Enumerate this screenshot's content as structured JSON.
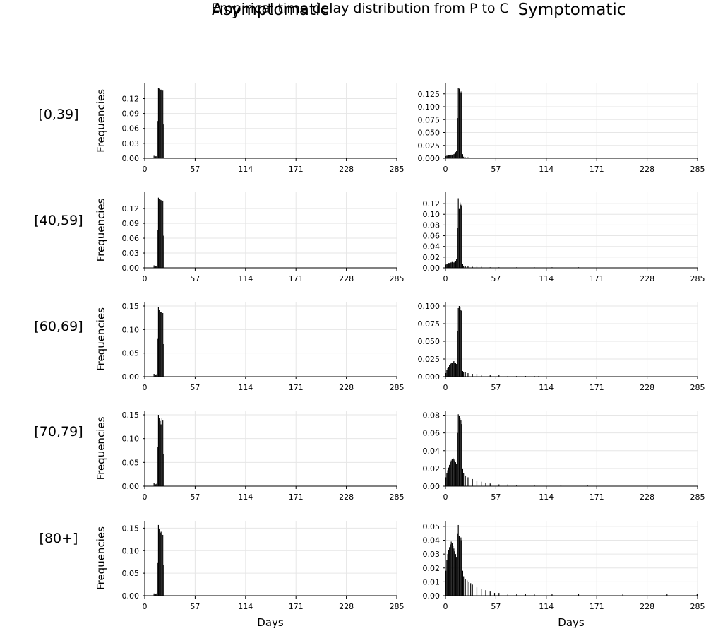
{
  "figure": {
    "title": "Empirical time delay distribution from P to C",
    "column_titles": [
      "Asymptomatic",
      "Symptomatic"
    ],
    "row_labels": [
      "[0,39]",
      "[40,59]",
      "[60,69]",
      "[70,79]",
      "[80+]"
    ],
    "ylabel": "Frequencies",
    "xlabel": "Days",
    "bar_color": "#000000"
  },
  "chart_data": [
    {
      "type": "bar",
      "title": "Asymptomatic [0,39]",
      "xlabel": "",
      "ylabel": "Frequencies",
      "xlim": [
        0,
        285
      ],
      "ylim": [
        0,
        0.142
      ],
      "x_ticks": [
        0,
        57,
        114,
        171,
        228,
        285
      ],
      "y_ticks": [
        "0.00",
        "0.03",
        "0.06",
        "0.09",
        "0.12"
      ],
      "grid": true,
      "x": [
        10,
        11,
        12,
        13,
        14,
        15,
        16,
        17,
        18,
        19,
        20,
        21
      ],
      "values": [
        0.005,
        0.004,
        0.004,
        0.004,
        0.075,
        0.141,
        0.14,
        0.138,
        0.138,
        0.136,
        0.136,
        0.068
      ]
    },
    {
      "type": "bar",
      "title": "Symptomatic [0,39]",
      "xlabel": "",
      "ylabel": "",
      "xlim": [
        0,
        285
      ],
      "ylim": [
        0,
        0.137
      ],
      "x_ticks": [
        0,
        57,
        114,
        171,
        228,
        285
      ],
      "y_ticks": [
        "0.000",
        "0.025",
        "0.050",
        "0.075",
        "0.100",
        "0.125"
      ],
      "grid": true,
      "x": [
        0,
        1,
        2,
        3,
        4,
        5,
        6,
        7,
        8,
        9,
        10,
        11,
        12,
        13,
        14,
        15,
        16,
        17,
        18,
        19,
        20,
        22,
        25,
        30,
        35,
        40,
        45
      ],
      "values": [
        0.004,
        0.005,
        0.005,
        0.006,
        0.006,
        0.006,
        0.007,
        0.007,
        0.007,
        0.008,
        0.009,
        0.012,
        0.015,
        0.078,
        0.136,
        0.135,
        0.13,
        0.128,
        0.13,
        0.008,
        0.003,
        0.002,
        0.002,
        0.001,
        0.001,
        0.001,
        0.001
      ]
    },
    {
      "type": "bar",
      "title": "Asymptomatic [40,59]",
      "xlabel": "",
      "ylabel": "Frequencies",
      "xlim": [
        0,
        285
      ],
      "ylim": [
        0,
        0.143
      ],
      "x_ticks": [
        0,
        57,
        114,
        171,
        228,
        285
      ],
      "y_ticks": [
        "0.00",
        "0.03",
        "0.06",
        "0.09",
        "0.12"
      ],
      "grid": true,
      "x": [
        10,
        11,
        12,
        13,
        14,
        15,
        16,
        17,
        18,
        19,
        20,
        21
      ],
      "values": [
        0.005,
        0.004,
        0.004,
        0.004,
        0.076,
        0.142,
        0.139,
        0.138,
        0.137,
        0.136,
        0.136,
        0.065
      ]
    },
    {
      "type": "bar",
      "title": "Symptomatic [40,59]",
      "xlabel": "",
      "ylabel": "",
      "xlim": [
        0,
        285
      ],
      "ylim": [
        0,
        0.132
      ],
      "x_ticks": [
        0,
        57,
        114,
        171,
        228,
        285
      ],
      "y_ticks": [
        "0.00",
        "0.02",
        "0.04",
        "0.06",
        "0.08",
        "0.10",
        "0.12"
      ],
      "grid": true,
      "x": [
        0,
        1,
        2,
        3,
        4,
        5,
        6,
        7,
        8,
        9,
        10,
        11,
        12,
        13,
        14,
        15,
        16,
        17,
        18,
        19,
        20,
        22,
        25,
        30,
        35,
        40,
        50,
        60,
        80,
        100,
        120,
        150
      ],
      "values": [
        0.006,
        0.007,
        0.008,
        0.009,
        0.009,
        0.01,
        0.01,
        0.011,
        0.01,
        0.01,
        0.011,
        0.013,
        0.016,
        0.075,
        0.13,
        0.11,
        0.122,
        0.118,
        0.115,
        0.007,
        0.004,
        0.003,
        0.003,
        0.002,
        0.002,
        0.002,
        0.001,
        0.001,
        0.001,
        0.001,
        0.001,
        0.001
      ]
    },
    {
      "type": "bar",
      "title": "Asymptomatic [60,69]",
      "xlabel": "",
      "ylabel": "Frequencies",
      "xlim": [
        0,
        285
      ],
      "ylim": [
        0,
        0.153
      ],
      "x_ticks": [
        0,
        57,
        114,
        171,
        228,
        285
      ],
      "y_ticks": [
        "0.00",
        "0.05",
        "0.10",
        "0.15"
      ],
      "grid": true,
      "x": [
        10,
        11,
        12,
        13,
        14,
        15,
        16,
        17,
        18,
        19,
        20,
        21
      ],
      "values": [
        0.006,
        0.005,
        0.004,
        0.005,
        0.08,
        0.147,
        0.141,
        0.138,
        0.137,
        0.136,
        0.135,
        0.069
      ]
    },
    {
      "type": "bar",
      "title": "Symptomatic [60,69]",
      "xlabel": "",
      "ylabel": "",
      "xlim": [
        0,
        285
      ],
      "ylim": [
        0,
        0.102
      ],
      "x_ticks": [
        0,
        57,
        114,
        171,
        228,
        285
      ],
      "y_ticks": [
        "0.000",
        "0.025",
        "0.050",
        "0.075",
        "0.100"
      ],
      "grid": true,
      "x": [
        0,
        1,
        2,
        3,
        4,
        5,
        6,
        7,
        8,
        9,
        10,
        11,
        12,
        13,
        14,
        15,
        16,
        17,
        18,
        19,
        20,
        22,
        25,
        30,
        35,
        40,
        50,
        60,
        70,
        80,
        90,
        100,
        105
      ],
      "values": [
        0.005,
        0.009,
        0.012,
        0.014,
        0.016,
        0.018,
        0.019,
        0.02,
        0.021,
        0.022,
        0.02,
        0.019,
        0.018,
        0.065,
        0.097,
        0.1,
        0.098,
        0.095,
        0.093,
        0.008,
        0.006,
        0.006,
        0.005,
        0.004,
        0.004,
        0.003,
        0.002,
        0.002,
        0.001,
        0.001,
        0.001,
        0.001,
        0.001
      ]
    },
    {
      "type": "bar",
      "title": "Asymptomatic [70,79]",
      "xlabel": "",
      "ylabel": "Frequencies",
      "xlim": [
        0,
        285
      ],
      "ylim": [
        0,
        0.153
      ],
      "x_ticks": [
        0,
        57,
        114,
        171,
        228,
        285
      ],
      "y_ticks": [
        "0.00",
        "0.05",
        "0.10",
        "0.15"
      ],
      "grid": true,
      "x": [
        10,
        11,
        12,
        13,
        14,
        15,
        16,
        17,
        18,
        19,
        20,
        21
      ],
      "values": [
        0.006,
        0.005,
        0.004,
        0.005,
        0.082,
        0.15,
        0.143,
        0.137,
        0.13,
        0.143,
        0.138,
        0.067
      ]
    },
    {
      "type": "bar",
      "title": "Symptomatic [70,79]",
      "xlabel": "",
      "ylabel": "",
      "xlim": [
        0,
        285
      ],
      "ylim": [
        0,
        0.082
      ],
      "x_ticks": [
        0,
        57,
        114,
        171,
        228,
        285
      ],
      "y_ticks": [
        "0.00",
        "0.02",
        "0.04",
        "0.06",
        "0.08"
      ],
      "grid": true,
      "x": [
        0,
        1,
        2,
        3,
        4,
        5,
        6,
        7,
        8,
        9,
        10,
        11,
        12,
        13,
        14,
        15,
        16,
        17,
        18,
        19,
        20,
        22,
        25,
        30,
        35,
        40,
        45,
        50,
        60,
        70,
        80,
        100,
        130,
        160
      ],
      "values": [
        0.01,
        0.015,
        0.018,
        0.021,
        0.024,
        0.027,
        0.029,
        0.031,
        0.032,
        0.031,
        0.029,
        0.027,
        0.025,
        0.06,
        0.081,
        0.079,
        0.077,
        0.074,
        0.07,
        0.02,
        0.015,
        0.012,
        0.01,
        0.008,
        0.006,
        0.005,
        0.004,
        0.003,
        0.002,
        0.002,
        0.001,
        0.001,
        0.001,
        0.001
      ]
    },
    {
      "type": "bar",
      "title": "Asymptomatic [80+]",
      "xlabel": "Days",
      "ylabel": "Frequencies",
      "xlim": [
        0,
        285
      ],
      "ylim": [
        0,
        0.16
      ],
      "x_ticks": [
        0,
        57,
        114,
        171,
        228,
        285
      ],
      "y_ticks": [
        "0.00",
        "0.05",
        "0.10",
        "0.15"
      ],
      "grid": true,
      "x": [
        10,
        11,
        12,
        13,
        14,
        15,
        16,
        17,
        18,
        19,
        20,
        21
      ],
      "values": [
        0.005,
        0.005,
        0.004,
        0.005,
        0.074,
        0.157,
        0.148,
        0.14,
        0.142,
        0.138,
        0.135,
        0.068
      ]
    },
    {
      "type": "bar",
      "title": "Symptomatic [80+]",
      "xlabel": "Days",
      "ylabel": "",
      "xlim": [
        0,
        285
      ],
      "ylim": [
        0,
        0.052
      ],
      "x_ticks": [
        0,
        57,
        114,
        171,
        228,
        285
      ],
      "y_ticks": [
        "0.00",
        "0.01",
        "0.02",
        "0.03",
        "0.04",
        "0.05"
      ],
      "grid": true,
      "x": [
        0,
        1,
        2,
        3,
        4,
        5,
        6,
        7,
        8,
        9,
        10,
        11,
        12,
        13,
        14,
        15,
        16,
        17,
        18,
        19,
        20,
        22,
        24,
        26,
        28,
        30,
        35,
        40,
        45,
        50,
        55,
        60,
        70,
        80,
        90,
        100,
        120,
        150,
        200,
        250,
        284
      ],
      "values": [
        0.018,
        0.026,
        0.03,
        0.033,
        0.035,
        0.037,
        0.039,
        0.038,
        0.036,
        0.034,
        0.032,
        0.03,
        0.028,
        0.045,
        0.051,
        0.043,
        0.04,
        0.042,
        0.04,
        0.018,
        0.014,
        0.012,
        0.011,
        0.01,
        0.009,
        0.008,
        0.006,
        0.005,
        0.004,
        0.003,
        0.002,
        0.002,
        0.001,
        0.001,
        0.001,
        0.001,
        0.001,
        0.001,
        0.001,
        0.001,
        0.001
      ]
    }
  ]
}
